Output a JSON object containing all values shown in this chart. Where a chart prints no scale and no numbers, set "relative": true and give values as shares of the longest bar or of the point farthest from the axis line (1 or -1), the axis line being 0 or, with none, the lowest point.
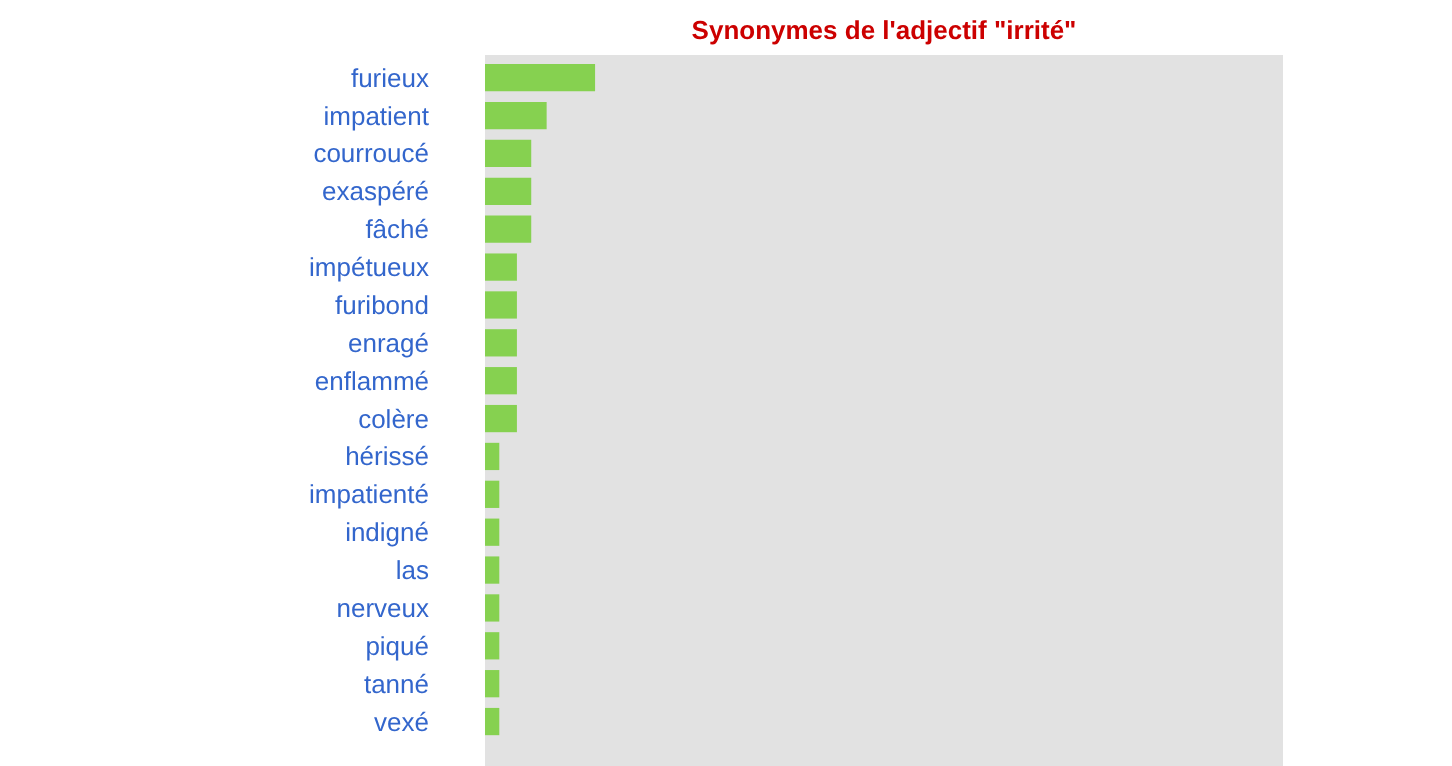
{
  "chart_data": {
    "type": "bar",
    "orientation": "horizontal",
    "relative": true,
    "title": "Synonymes de l'adjectif \"irrité\"",
    "categories": [
      "furieux",
      "impatient",
      "courroucé",
      "exaspéré",
      "fâché",
      "impétueux",
      "furibond",
      "enragé",
      "enflammé",
      "colère",
      "hérissé",
      "impatienté",
      "indigné",
      "las",
      "nerveux",
      "piqué",
      "tanné",
      "vexé"
    ],
    "values": [
      1,
      0.56,
      0.42,
      0.42,
      0.42,
      0.29,
      0.29,
      0.29,
      0.29,
      0.29,
      0.13,
      0.13,
      0.13,
      0.13,
      0.13,
      0.13,
      0.13,
      0.13
    ],
    "color": "#86d150"
  }
}
